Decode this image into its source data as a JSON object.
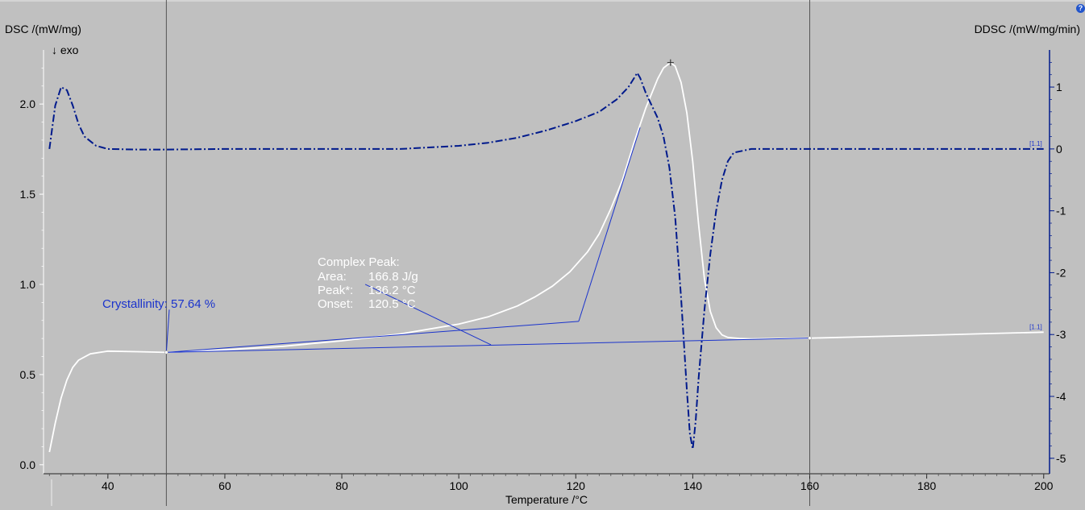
{
  "chart_data": {
    "type": "line",
    "xlabel": "Temperature /°C",
    "ylabel_left": "DSC /(mW/mg)",
    "ylabel_right": "DDSC /(mW/mg/min)",
    "exo_marker": "↓ exo",
    "xlim": [
      29,
      201
    ],
    "ylim_left": [
      -0.05,
      2.3
    ],
    "ylim_right": [
      -5.25,
      1.6
    ],
    "x_ticks": [
      "40",
      "60",
      "80",
      "100",
      "120",
      "140",
      "160",
      "180",
      "200"
    ],
    "y_left_ticks": [
      "0.0",
      "0.5",
      "1.0",
      "1.5",
      "2.0"
    ],
    "y_right_ticks": [
      "1",
      "0",
      "-1",
      "-2",
      "-3",
      "-4",
      "-5"
    ],
    "vertical_markers": [
      50,
      160
    ],
    "series": [
      {
        "key": "dsc",
        "axis": "left",
        "style": "solid",
        "color": "#ffffff",
        "segment_label": "[1.1]",
        "x": [
          30,
          31,
          32,
          33,
          34,
          35,
          37,
          40,
          45,
          50,
          60,
          70,
          80,
          90,
          100,
          105,
          110,
          113,
          116,
          119,
          122,
          124,
          126,
          128,
          130,
          132,
          134,
          135,
          136.2,
          137,
          138,
          139,
          140,
          141,
          142,
          143,
          144,
          145,
          146,
          148,
          150,
          160,
          170,
          180,
          190,
          200
        ],
        "y": [
          0.07,
          0.23,
          0.37,
          0.47,
          0.54,
          0.58,
          0.615,
          0.63,
          0.627,
          0.623,
          0.637,
          0.657,
          0.687,
          0.725,
          0.78,
          0.82,
          0.88,
          0.93,
          0.99,
          1.07,
          1.18,
          1.28,
          1.42,
          1.58,
          1.79,
          1.98,
          2.14,
          2.2,
          2.23,
          2.21,
          2.12,
          1.95,
          1.68,
          1.33,
          1.03,
          0.85,
          0.76,
          0.72,
          0.706,
          0.7,
          0.698,
          0.702,
          0.71,
          0.718,
          0.727,
          0.735
        ]
      },
      {
        "key": "ddsc",
        "axis": "right",
        "style": "dashdot",
        "color": "#001a8c",
        "segment_label": "[1.1]",
        "x": [
          30,
          31,
          32,
          33,
          34,
          35,
          36,
          38,
          40,
          45,
          50,
          60,
          70,
          80,
          90,
          100,
          105,
          110,
          115,
          120,
          124,
          127,
          129,
          130,
          130.5,
          131,
          132,
          133,
          134,
          135,
          136,
          137,
          138,
          139,
          139.5,
          140,
          140.5,
          141,
          142,
          143,
          144,
          145,
          146,
          147,
          150,
          160,
          170,
          180,
          190,
          200
        ],
        "y": [
          0,
          0.7,
          1.0,
          0.95,
          0.7,
          0.4,
          0.2,
          0.05,
          0.0,
          -0.01,
          -0.01,
          0.0,
          0.0,
          0.0,
          0.0,
          0.05,
          0.1,
          0.18,
          0.3,
          0.45,
          0.6,
          0.8,
          1.0,
          1.15,
          1.23,
          1.15,
          0.9,
          0.7,
          0.5,
          0.2,
          -0.3,
          -1.1,
          -2.4,
          -3.9,
          -4.6,
          -4.85,
          -4.4,
          -3.7,
          -2.6,
          -1.7,
          -1.0,
          -0.5,
          -0.2,
          -0.06,
          0.0,
          0.0,
          0.0,
          0.0,
          0.0,
          0.0
        ]
      }
    ],
    "annotations": {
      "complex_peak": {
        "title": "Complex Peak:",
        "area_label": "Area:",
        "area_value": "166.8 J/g",
        "peak_label": "Peak*:",
        "peak_value": "136.2 °C",
        "onset_label": "Onset:",
        "onset_value": "120.5 °C"
      },
      "crystallinity": "Crystallinity: 57.64 %"
    }
  }
}
